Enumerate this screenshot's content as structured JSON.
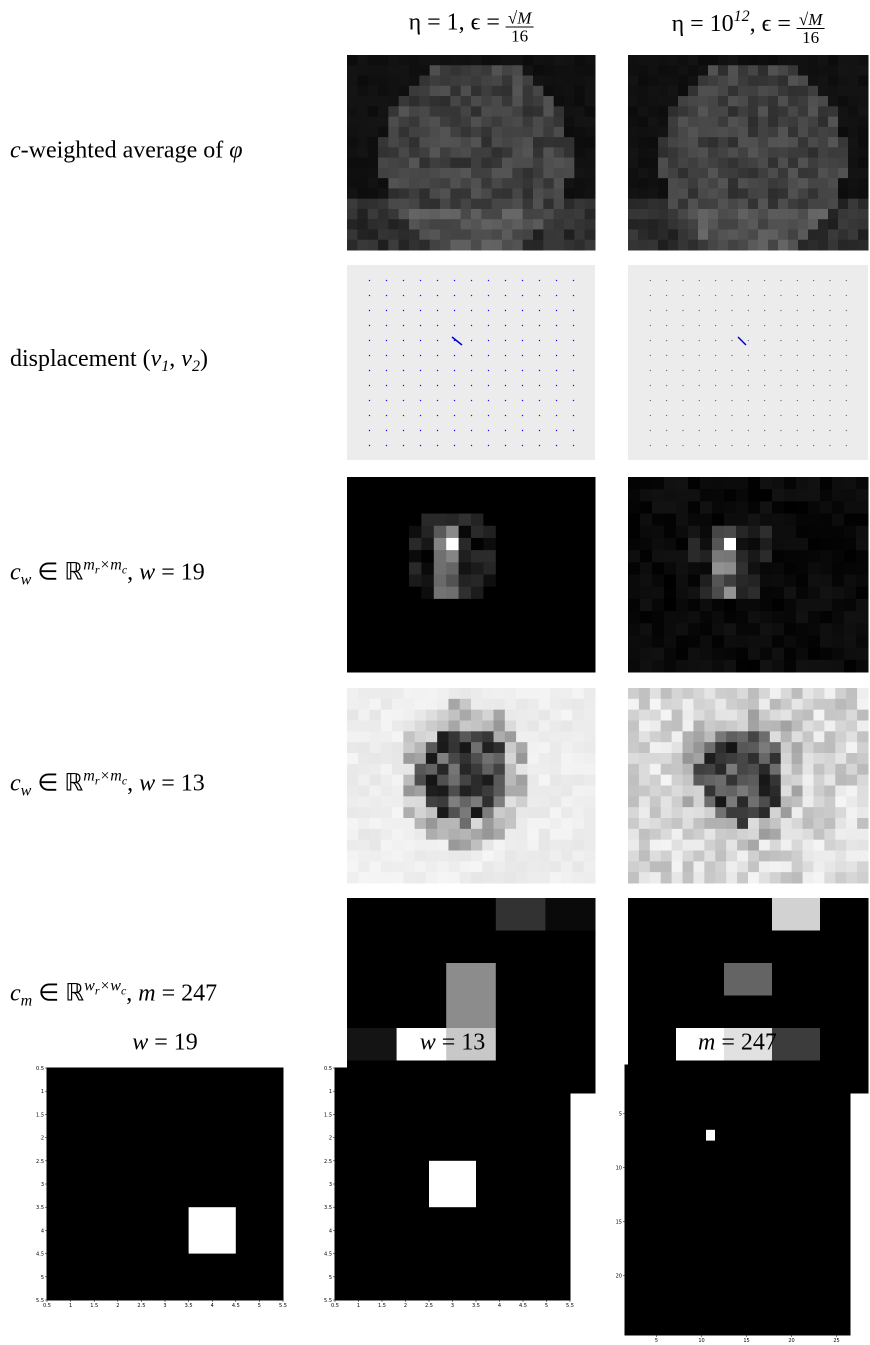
{
  "columns": [
    {
      "parts": [
        {
          "text": "η = 1, ϵ = "
        },
        {
          "text": "√M",
          "style": "num"
        },
        {
          "text": "16",
          "style": "den"
        }
      ]
    },
    {
      "parts": [
        {
          "text": "η = 10"
        },
        {
          "text": "12",
          "style": "sup"
        },
        {
          "text": ", ϵ = "
        },
        {
          "text": "√M",
          "style": "num"
        },
        {
          "text": "16",
          "style": "den"
        }
      ]
    }
  ],
  "rows": [
    {
      "parts": [
        {
          "text": "c",
          "style": "math"
        },
        {
          "text": "-weighted average of "
        },
        {
          "text": "φ",
          "style": "math"
        }
      ]
    },
    {
      "parts": [
        {
          "text": "displacement ("
        },
        {
          "text": "v",
          "style": "math"
        },
        {
          "text": "1",
          "style": "sub"
        },
        {
          "text": ", "
        },
        {
          "text": "v",
          "style": "math"
        },
        {
          "text": "2",
          "style": "sub"
        },
        {
          "text": ")"
        }
      ]
    },
    {
      "parts": [
        {
          "text": "c",
          "style": "math"
        },
        {
          "text": "w",
          "style": "sub"
        },
        {
          "text": " ∈ ℝ"
        },
        {
          "text": "m",
          "style": "sup"
        },
        {
          "text": "r",
          "style": "supsub"
        },
        {
          "text": "×m",
          "style": "sup"
        },
        {
          "text": "c",
          "style": "supsub"
        },
        {
          "text": ", "
        },
        {
          "text": "w",
          "style": "math"
        },
        {
          "text": " = 19"
        }
      ]
    },
    {
      "parts": [
        {
          "text": "c",
          "style": "math"
        },
        {
          "text": "w",
          "style": "sub"
        },
        {
          "text": " ∈ ℝ"
        },
        {
          "text": "m",
          "style": "sup"
        },
        {
          "text": "r",
          "style": "supsub"
        },
        {
          "text": "×m",
          "style": "sup"
        },
        {
          "text": "c",
          "style": "supsub"
        },
        {
          "text": ", "
        },
        {
          "text": "w",
          "style": "math"
        },
        {
          "text": " = 13"
        }
      ]
    },
    {
      "parts": [
        {
          "text": "c",
          "style": "math"
        },
        {
          "text": "m",
          "style": "sub"
        },
        {
          "text": " ∈ ℝ"
        },
        {
          "text": "w",
          "style": "sup"
        },
        {
          "text": "r",
          "style": "supsub"
        },
        {
          "text": "×w",
          "style": "sup"
        },
        {
          "text": "c",
          "style": "supsub"
        },
        {
          "text": ", "
        },
        {
          "text": "m",
          "style": "math"
        },
        {
          "text": " = 247"
        }
      ]
    }
  ],
  "bottom_plots": [
    {
      "title_parts": [
        {
          "text": "w",
          "style": "math"
        },
        {
          "text": " = 19"
        }
      ],
      "xlim": [
        0.5,
        5.5
      ],
      "ylim": [
        0.5,
        5.5
      ],
      "xticks": [
        0.5,
        1,
        1.5,
        2,
        2.5,
        3,
        3.5,
        4,
        4.5,
        5,
        5.5
      ],
      "yticks": [
        0.5,
        1,
        1.5,
        2,
        2.5,
        3,
        3.5,
        4,
        4.5,
        5,
        5.5
      ],
      "highlight": {
        "x": [
          3.5,
          4.5
        ],
        "y": [
          3.5,
          4.5
        ]
      }
    },
    {
      "title_parts": [
        {
          "text": "w",
          "style": "math"
        },
        {
          "text": " = 13"
        }
      ],
      "xlim": [
        0.5,
        5.5
      ],
      "ylim": [
        0.5,
        5.5
      ],
      "xticks": [
        0.5,
        1,
        1.5,
        2,
        2.5,
        3,
        3.5,
        4,
        4.5,
        5,
        5.5
      ],
      "yticks": [
        0.5,
        1,
        1.5,
        2,
        2.5,
        3,
        3.5,
        4,
        4.5,
        5,
        5.5
      ],
      "highlight": {
        "x": [
          2.5,
          3.5
        ],
        "y": [
          2.5,
          3.5
        ]
      }
    },
    {
      "title_parts": [
        {
          "text": "m",
          "style": "math"
        },
        {
          "text": " = 247"
        }
      ],
      "xlim": [
        1.5,
        26.5
      ],
      "ylim": [
        0.5,
        25.5
      ],
      "xticks": [
        5,
        10,
        15,
        20,
        25
      ],
      "yticks": [
        5,
        10,
        15,
        20
      ],
      "highlight": {
        "x": [
          10.5,
          11.5
        ],
        "y": [
          6.5,
          7.5
        ]
      }
    }
  ]
}
